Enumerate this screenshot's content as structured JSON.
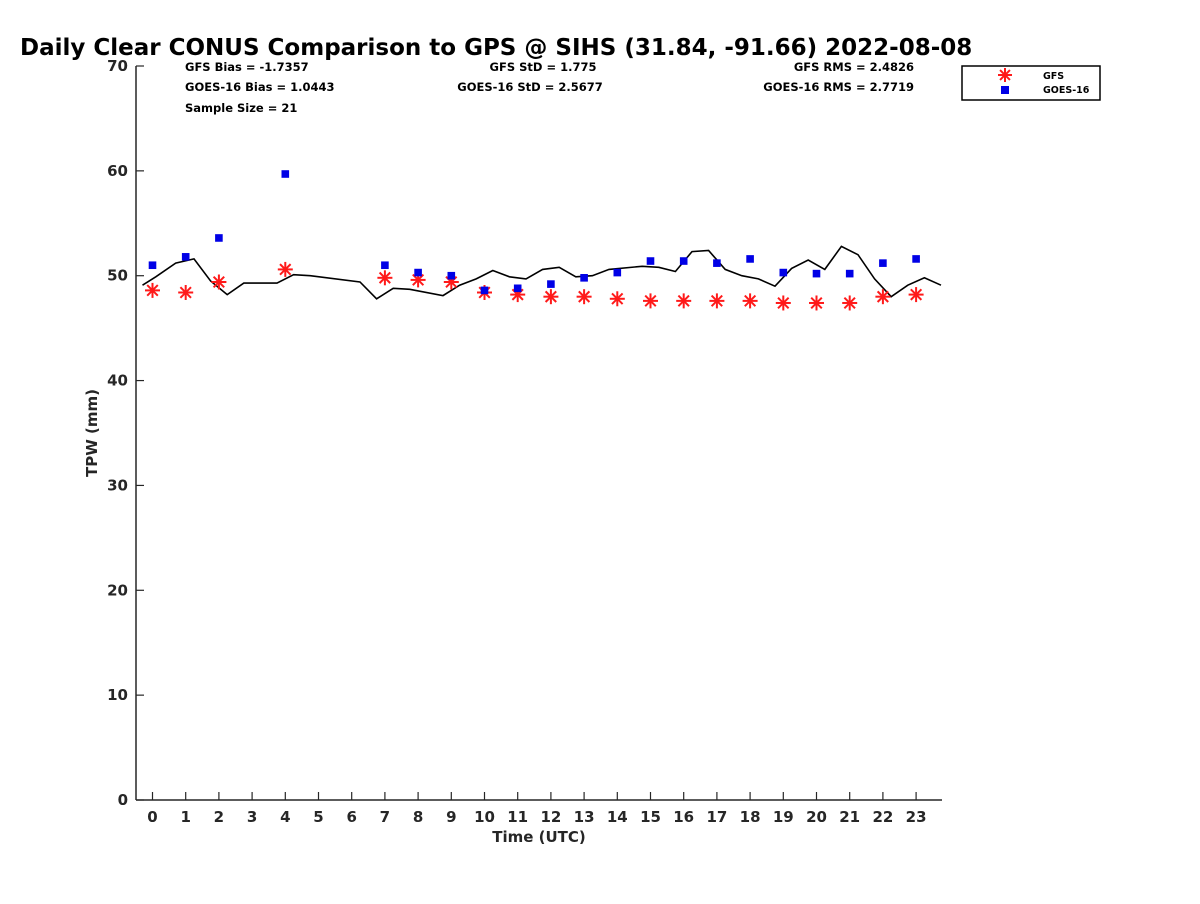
{
  "chart_data": {
    "type": "scatter",
    "title": "Daily Clear CONUS Comparison to GPS @ SIHS (31.84, -91.66) 2022-08-08",
    "xlabel": "Time (UTC)",
    "ylabel": "TPW (mm)",
    "xlim": [
      -0.5,
      23.8
    ],
    "ylim": [
      0,
      70
    ],
    "xticks": [
      "0",
      "1",
      "2",
      "3",
      "4",
      "5",
      "6",
      "7",
      "8",
      "9",
      "10",
      "11",
      "12",
      "13",
      "14",
      "15",
      "16",
      "17",
      "18",
      "19",
      "20",
      "21",
      "22",
      "23"
    ],
    "yticks": [
      "0",
      "10",
      "20",
      "30",
      "40",
      "50",
      "60",
      "70"
    ],
    "grid": false,
    "legend_position": "top-right outside",
    "stats": {
      "gfs_bias": "GFS Bias = -1.7357",
      "goes_bias": "GOES-16 Bias = 1.0443",
      "sample_size": "Sample Size = 21",
      "gfs_std": "GFS StD = 1.775",
      "goes_std": "GOES-16 StD = 2.5677",
      "gfs_rms": "GFS RMS = 2.4826",
      "goes_rms": "GOES-16 RMS = 2.7719"
    },
    "series": [
      {
        "name": "GFS",
        "marker": "asterisk",
        "color": "#ff1a1a",
        "points": [
          [
            0,
            48.6
          ],
          [
            1,
            48.4
          ],
          [
            2,
            49.4
          ],
          [
            4,
            50.6
          ],
          [
            7,
            49.8
          ],
          [
            8,
            49.6
          ],
          [
            9,
            49.4
          ],
          [
            10,
            48.4
          ],
          [
            11,
            48.2
          ],
          [
            12,
            48.0
          ],
          [
            13,
            48.0
          ],
          [
            14,
            47.8
          ],
          [
            15,
            47.6
          ],
          [
            16,
            47.6
          ],
          [
            17,
            47.6
          ],
          [
            18,
            47.6
          ],
          [
            19,
            47.4
          ],
          [
            20,
            47.4
          ],
          [
            21,
            47.4
          ],
          [
            22,
            48.0
          ],
          [
            23,
            48.2
          ]
        ]
      },
      {
        "name": "GOES-16",
        "marker": "square",
        "color": "#0000e6",
        "points": [
          [
            0,
            51.0
          ],
          [
            1,
            51.8
          ],
          [
            2,
            53.6
          ],
          [
            4,
            59.7
          ],
          [
            7,
            51.0
          ],
          [
            8,
            50.3
          ],
          [
            9,
            50.0
          ],
          [
            10,
            48.6
          ],
          [
            11,
            48.8
          ],
          [
            12,
            49.2
          ],
          [
            13,
            49.8
          ],
          [
            14,
            50.3
          ],
          [
            15,
            51.4
          ],
          [
            16,
            51.4
          ],
          [
            17,
            51.2
          ],
          [
            18,
            51.6
          ],
          [
            19,
            50.3
          ],
          [
            20,
            50.2
          ],
          [
            21,
            50.2
          ],
          [
            22,
            51.2
          ],
          [
            23,
            51.6
          ]
        ]
      },
      {
        "marker": "line",
        "color": "#000000",
        "points": [
          [
            -0.3,
            49.1
          ],
          [
            0.1,
            49.9
          ],
          [
            0.7,
            51.2
          ],
          [
            1.25,
            51.6
          ],
          [
            1.75,
            49.5
          ],
          [
            2.25,
            48.2
          ],
          [
            2.75,
            49.3
          ],
          [
            3.75,
            49.3
          ],
          [
            4.25,
            50.1
          ],
          [
            4.75,
            50.0
          ],
          [
            6.25,
            49.4
          ],
          [
            6.75,
            47.8
          ],
          [
            7.25,
            48.8
          ],
          [
            7.75,
            48.7
          ],
          [
            8.75,
            48.1
          ],
          [
            9.25,
            49.1
          ],
          [
            9.75,
            49.7
          ],
          [
            10.25,
            50.5
          ],
          [
            10.75,
            49.9
          ],
          [
            11.25,
            49.7
          ],
          [
            11.75,
            50.6
          ],
          [
            12.25,
            50.8
          ],
          [
            12.75,
            49.9
          ],
          [
            13.25,
            50.0
          ],
          [
            13.75,
            50.6
          ],
          [
            14.75,
            50.9
          ],
          [
            15.25,
            50.8
          ],
          [
            15.75,
            50.4
          ],
          [
            16.25,
            52.3
          ],
          [
            16.75,
            52.4
          ],
          [
            17.25,
            50.6
          ],
          [
            17.75,
            50.0
          ],
          [
            18.25,
            49.7
          ],
          [
            18.75,
            49.0
          ],
          [
            19.25,
            50.7
          ],
          [
            19.75,
            51.5
          ],
          [
            20.25,
            50.6
          ],
          [
            20.75,
            52.8
          ],
          [
            21.25,
            52.0
          ],
          [
            21.75,
            49.7
          ],
          [
            22.25,
            48.0
          ],
          [
            22.75,
            49.1
          ],
          [
            23.25,
            49.8
          ],
          [
            23.75,
            49.1
          ]
        ]
      }
    ],
    "legend": [
      "GFS",
      "GOES-16"
    ]
  }
}
